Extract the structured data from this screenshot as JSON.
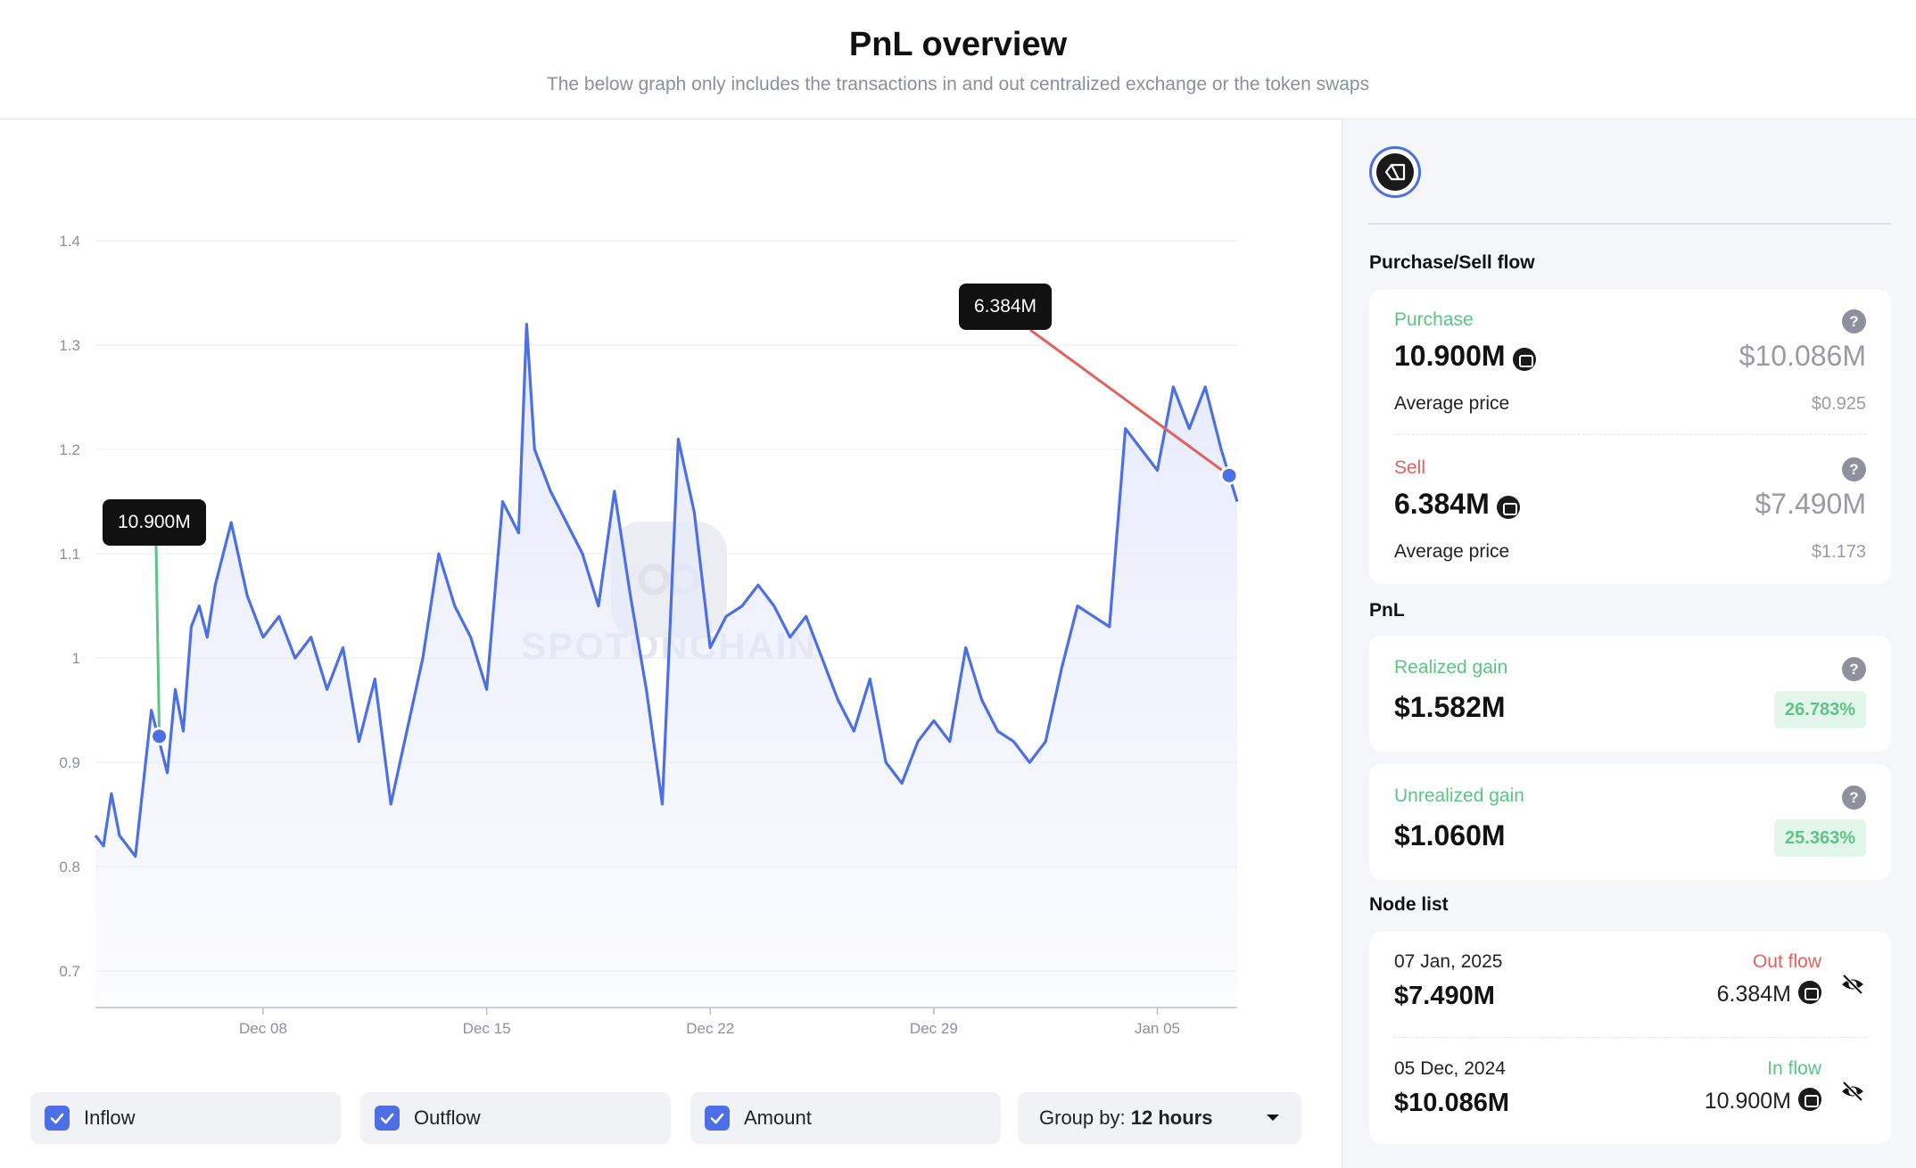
{
  "header": {
    "title": "PnL overview",
    "subtitle": "The below graph only includes the transactions in and out centralized exchange or the token swaps"
  },
  "chart_data": {
    "type": "area",
    "x_tick_labels": [
      "Dec 08",
      "Dec 15",
      "Dec 22",
      "Dec 29",
      "Jan 05"
    ],
    "y_ticks": [
      0.7,
      0.8,
      0.9,
      1,
      1.1,
      1.2,
      1.3,
      1.4
    ],
    "y_tick_labels": [
      "0.7",
      "0.8",
      "0.9",
      "1",
      "1.1",
      "1.2",
      "1.3",
      "1.4"
    ],
    "ylim": [
      0.665,
      1.43
    ],
    "xlim": [
      "2024-12-02 18:00",
      "2025-01-07 12:00"
    ],
    "grid": true,
    "line_color": "#4d6fe6",
    "fill_color": "#e6eafb",
    "series": [
      {
        "points": [
          [
            "2024-12-02 18:00",
            0.83
          ],
          [
            "2024-12-03 00:00",
            0.82
          ],
          [
            "2024-12-03 06:00",
            0.87
          ],
          [
            "2024-12-03 12:00",
            0.83
          ],
          [
            "2024-12-03 18:00",
            0.82
          ],
          [
            "2024-12-04 00:00",
            0.81
          ],
          [
            "2024-12-04 06:00",
            0.88
          ],
          [
            "2024-12-04 12:00",
            0.95
          ],
          [
            "2024-12-04 18:00",
            0.92
          ],
          [
            "2024-12-05 00:00",
            0.89
          ],
          [
            "2024-12-05 06:00",
            0.97
          ],
          [
            "2024-12-05 12:00",
            0.93
          ],
          [
            "2024-12-05 18:00",
            1.03
          ],
          [
            "2024-12-06 00:00",
            1.05
          ],
          [
            "2024-12-06 06:00",
            1.02
          ],
          [
            "2024-12-06 12:00",
            1.07
          ],
          [
            "2024-12-07 00:00",
            1.13
          ],
          [
            "2024-12-07 12:00",
            1.06
          ],
          [
            "2024-12-08 00:00",
            1.02
          ],
          [
            "2024-12-08 12:00",
            1.04
          ],
          [
            "2024-12-09 00:00",
            1.0
          ],
          [
            "2024-12-09 12:00",
            1.02
          ],
          [
            "2024-12-10 00:00",
            0.97
          ],
          [
            "2024-12-10 12:00",
            1.01
          ],
          [
            "2024-12-11 00:00",
            0.92
          ],
          [
            "2024-12-11 12:00",
            0.98
          ],
          [
            "2024-12-12 00:00",
            0.86
          ],
          [
            "2024-12-12 12:00",
            0.93
          ],
          [
            "2024-12-13 00:00",
            1.0
          ],
          [
            "2024-12-13 12:00",
            1.1
          ],
          [
            "2024-12-14 00:00",
            1.05
          ],
          [
            "2024-12-14 12:00",
            1.02
          ],
          [
            "2024-12-15 00:00",
            0.97
          ],
          [
            "2024-12-15 12:00",
            1.15
          ],
          [
            "2024-12-16 00:00",
            1.12
          ],
          [
            "2024-12-16 06:00",
            1.32
          ],
          [
            "2024-12-16 12:00",
            1.2
          ],
          [
            "2024-12-17 00:00",
            1.16
          ],
          [
            "2024-12-17 12:00",
            1.13
          ],
          [
            "2024-12-18 00:00",
            1.1
          ],
          [
            "2024-12-18 12:00",
            1.05
          ],
          [
            "2024-12-19 00:00",
            1.16
          ],
          [
            "2024-12-19 12:00",
            1.06
          ],
          [
            "2024-12-20 00:00",
            0.97
          ],
          [
            "2024-12-20 12:00",
            0.86
          ],
          [
            "2024-12-21 00:00",
            1.21
          ],
          [
            "2024-12-21 12:00",
            1.14
          ],
          [
            "2024-12-22 00:00",
            1.01
          ],
          [
            "2024-12-22 12:00",
            1.04
          ],
          [
            "2024-12-23 00:00",
            1.05
          ],
          [
            "2024-12-23 12:00",
            1.07
          ],
          [
            "2024-12-24 00:00",
            1.05
          ],
          [
            "2024-12-24 12:00",
            1.02
          ],
          [
            "2024-12-25 00:00",
            1.04
          ],
          [
            "2024-12-25 12:00",
            1.0
          ],
          [
            "2024-12-26 00:00",
            0.96
          ],
          [
            "2024-12-26 12:00",
            0.93
          ],
          [
            "2024-12-27 00:00",
            0.98
          ],
          [
            "2024-12-27 12:00",
            0.9
          ],
          [
            "2024-12-28 00:00",
            0.88
          ],
          [
            "2024-12-28 12:00",
            0.92
          ],
          [
            "2024-12-29 00:00",
            0.94
          ],
          [
            "2024-12-29 12:00",
            0.92
          ],
          [
            "2024-12-30 00:00",
            1.01
          ],
          [
            "2024-12-30 12:00",
            0.96
          ],
          [
            "2024-12-31 00:00",
            0.93
          ],
          [
            "2024-12-31 12:00",
            0.92
          ],
          [
            "2025-01-01 00:00",
            0.9
          ],
          [
            "2025-01-01 12:00",
            0.92
          ],
          [
            "2025-01-02 00:00",
            0.99
          ],
          [
            "2025-01-02 12:00",
            1.05
          ],
          [
            "2025-01-03 00:00",
            1.04
          ],
          [
            "2025-01-03 12:00",
            1.03
          ],
          [
            "2025-01-04 00:00",
            1.22
          ],
          [
            "2025-01-04 12:00",
            1.2
          ],
          [
            "2025-01-05 00:00",
            1.18
          ],
          [
            "2025-01-05 12:00",
            1.26
          ],
          [
            "2025-01-06 00:00",
            1.22
          ],
          [
            "2025-01-06 12:00",
            1.26
          ],
          [
            "2025-01-07 00:00",
            1.2
          ],
          [
            "2025-01-07 06:00",
            1.175
          ],
          [
            "2025-01-07 12:00",
            1.15
          ]
        ]
      }
    ],
    "markers": [
      {
        "type": "inflow",
        "label": "10.900M",
        "x": "2024-12-04 18:00",
        "y": 0.925,
        "color": "#5cc486"
      },
      {
        "type": "outflow",
        "label": "6.384M",
        "x": "2025-01-07 06:00",
        "y": 1.175,
        "color": "#e5605b"
      }
    ]
  },
  "watermark": "SPOTONCHAIN",
  "controls": {
    "inflow": {
      "label": "Inflow",
      "checked": true
    },
    "outflow": {
      "label": "Outflow",
      "checked": true
    },
    "amount": {
      "label": "Amount",
      "checked": true
    },
    "group_by": {
      "prefix": "Group by:",
      "value": "12 hours"
    }
  },
  "sidebar": {
    "token_icon": "token-logo-icon",
    "flow_title": "Purchase/Sell flow",
    "purchase": {
      "label": "Purchase",
      "amount": "10.900M",
      "usd": "$10.086M",
      "avg_label": "Average price",
      "avg_value": "$0.925"
    },
    "sell": {
      "label": "Sell",
      "amount": "6.384M",
      "usd": "$7.490M",
      "avg_label": "Average price",
      "avg_value": "$1.173"
    },
    "pnl_title": "PnL",
    "realized": {
      "label": "Realized gain",
      "value": "$1.582M",
      "pct": "26.783%"
    },
    "unrealized": {
      "label": "Unrealized gain",
      "value": "$1.060M",
      "pct": "25.363%"
    },
    "node_title": "Node list",
    "nodes": [
      {
        "date": "07 Jan, 2025",
        "usd": "$7.490M",
        "flow": "Out flow",
        "amount": "6.384M"
      },
      {
        "date": "05 Dec, 2024",
        "usd": "$10.086M",
        "flow": "In flow",
        "amount": "10.900M"
      }
    ],
    "help_glyph": "?"
  },
  "colors": {
    "accent": "#4d6fe6",
    "inflow": "#5cc486",
    "outflow": "#e5605b"
  }
}
